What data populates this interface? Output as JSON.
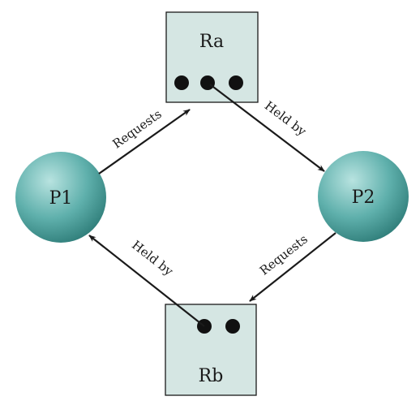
{
  "colors": {
    "resource_fill": "#d5e6e3",
    "resource_stroke": "#1a1a1a",
    "process_highlight": "#b8e3e0",
    "process_mid": "#5fb0ac",
    "process_shadow": "#2c7a76",
    "arrow": "#1a1a1a",
    "dot": "#111111"
  },
  "resources": [
    {
      "id": "Ra",
      "label": "Ra",
      "instances": 3
    },
    {
      "id": "Rb",
      "label": "Rb",
      "instances": 2
    }
  ],
  "processes": [
    {
      "id": "P1",
      "label": "P1"
    },
    {
      "id": "P2",
      "label": "P2"
    }
  ],
  "edges": [
    {
      "from": "P1",
      "to": "Ra",
      "label": "Requests"
    },
    {
      "from": "Ra",
      "to": "P2",
      "label": "Held by"
    },
    {
      "from": "P2",
      "to": "Rb",
      "label": "Requests"
    },
    {
      "from": "Rb",
      "to": "P1",
      "label": "Held by"
    }
  ]
}
